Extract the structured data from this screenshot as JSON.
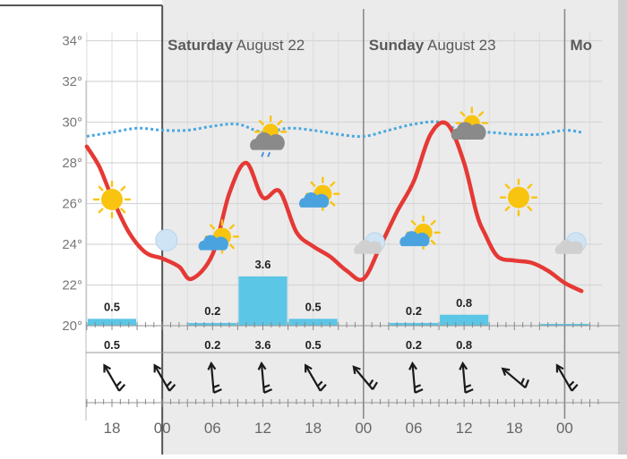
{
  "chart_data": {
    "type": "line",
    "x_unit": "hour",
    "days": [
      {
        "day": "Saturday",
        "date": "August 22"
      },
      {
        "day": "Sunday",
        "date": "August 23"
      },
      {
        "day": "Mo",
        "date": ""
      }
    ],
    "y_ticks": [
      "34°",
      "32°",
      "30°",
      "28°",
      "26°",
      "24°",
      "22°",
      "20°"
    ],
    "ylim": [
      20,
      35
    ],
    "x_ticks": [
      "18",
      "00",
      "06",
      "12",
      "18",
      "00",
      "06",
      "12",
      "18",
      "00"
    ],
    "temperature": {
      "x": [
        15,
        16.5,
        18,
        20,
        22,
        24,
        26,
        27.5,
        30,
        32,
        34,
        36,
        38,
        40,
        42,
        44,
        46,
        48,
        50,
        52,
        54,
        56,
        58,
        60,
        61.5,
        62.5,
        64,
        66,
        68,
        70,
        72,
        74
      ],
      "y": [
        28.8,
        27.8,
        26.3,
        24.6,
        23.6,
        23.3,
        22.9,
        22.3,
        23.5,
        26.5,
        28.0,
        26.3,
        26.6,
        24.6,
        23.9,
        23.4,
        22.7,
        22.3,
        23.9,
        25.6,
        27.1,
        29.4,
        29.9,
        28.0,
        25.5,
        24.5,
        23.4,
        23.2,
        23.1,
        22.7,
        22.1,
        21.7
      ]
    },
    "dew_point": {
      "x": [
        15,
        18,
        21,
        24,
        27,
        30,
        33,
        36,
        39,
        42,
        45,
        48,
        51,
        54,
        57,
        60,
        63,
        66,
        69,
        72,
        74
      ],
      "y": [
        29.3,
        29.5,
        29.7,
        29.6,
        29.6,
        29.8,
        29.9,
        29.5,
        29.7,
        29.6,
        29.4,
        29.3,
        29.6,
        29.9,
        30.0,
        29.5,
        29.5,
        29.4,
        29.4,
        29.6,
        29.5
      ]
    },
    "precipitation": [
      {
        "x": 18,
        "value": 0.5,
        "label": "0.5"
      },
      {
        "x": 30,
        "value": 0.2,
        "label": "0.2"
      },
      {
        "x": 36,
        "value": 3.6,
        "label": "3.6"
      },
      {
        "x": 42,
        "value": 0.5,
        "label": "0.5"
      },
      {
        "x": 54,
        "value": 0.2,
        "label": "0.2"
      },
      {
        "x": 60,
        "value": 0.8,
        "label": "0.8"
      },
      {
        "x": 72,
        "value": 0.1,
        "label": ""
      }
    ],
    "precip_row_labels": [
      {
        "x": 18,
        "label": "0.5"
      },
      {
        "x": 30,
        "label": "0.2"
      },
      {
        "x": 36,
        "label": "3.6"
      },
      {
        "x": 42,
        "label": "0.5"
      },
      {
        "x": 54,
        "label": "0.2"
      },
      {
        "x": 60,
        "label": "0.8"
      }
    ],
    "weather_icons": [
      {
        "x": 18,
        "temp": 26.2,
        "icon": "sun-icon"
      },
      {
        "x": 24.5,
        "temp": 24.2,
        "icon": "moon-icon"
      },
      {
        "x": 30.5,
        "temp": 24.2,
        "icon": "sun-cloud-icon"
      },
      {
        "x": 36.5,
        "temp": 29.0,
        "icon": "sun-rain-cloud-icon"
      },
      {
        "x": 42.5,
        "temp": 26.3,
        "icon": "sun-cloud-icon"
      },
      {
        "x": 48.5,
        "temp": 24.0,
        "icon": "moon-cloud-icon"
      },
      {
        "x": 54.5,
        "temp": 24.4,
        "icon": "sun-cloud-icon"
      },
      {
        "x": 60.5,
        "temp": 29.6,
        "icon": "sun-overcast-icon"
      },
      {
        "x": 66.5,
        "temp": 26.3,
        "icon": "sun-icon"
      },
      {
        "x": 72.5,
        "temp": 24.0,
        "icon": "moon-cloud-icon"
      }
    ],
    "wind_directions_deg": [
      330,
      330,
      355,
      355,
      330,
      320,
      355,
      355,
      310,
      330
    ],
    "grid": true,
    "colors": {
      "temperature": "#e53935",
      "dew_point": "#4ba8e0",
      "precipitation": "#5bc6e6",
      "past_shade": "#ffffff",
      "future_shade": "#ebebeb",
      "sun": "#f9c40f",
      "cloud": "#9e9e9e",
      "cloud_light": "#d0d0d0",
      "moon": "#cfe4f5",
      "rain": "#4a90d9"
    }
  }
}
